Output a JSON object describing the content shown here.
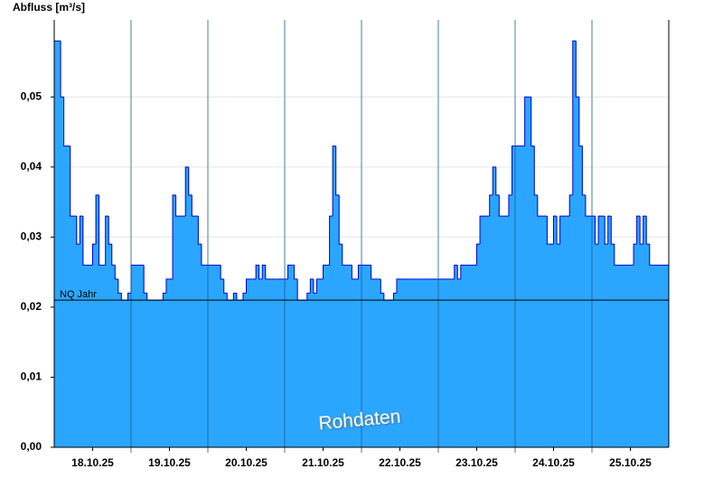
{
  "chart_data": {
    "type": "step-area",
    "y_label": "Abfluss [m³/s]",
    "color": "#2aa6ff",
    "line_color": "#0000cc",
    "grid": true,
    "ylim": [
      0,
      0.061
    ],
    "yticks": [
      {
        "value": 0,
        "label": "0,00"
      },
      {
        "value": 0.01,
        "label": "0,01"
      },
      {
        "value": 0.02,
        "label": "0,02"
      },
      {
        "value": 0.03,
        "label": "0,03"
      },
      {
        "value": 0.04,
        "label": "0,04"
      },
      {
        "value": 0.05,
        "label": "0,05"
      }
    ],
    "categories": [
      "18.10.25",
      "19.10.25",
      "20.10.25",
      "21.10.25",
      "22.10.25",
      "23.10.25",
      "24.10.25",
      "25.10.25"
    ],
    "values": [
      [
        0.058,
        0.058,
        0.05,
        0.043,
        0.043,
        0.033,
        0.033,
        0.029,
        0.033,
        0.026,
        0.026,
        0.026,
        0.029,
        0.036,
        0.026,
        0.026,
        0.033,
        0.029,
        0.026,
        0.024,
        0.022,
        0.021,
        0.021,
        0.022
      ],
      [
        0.026,
        0.026,
        0.026,
        0.026,
        0.022,
        0.021,
        0.021,
        0.021,
        0.021,
        0.021,
        0.022,
        0.024,
        0.024,
        0.036,
        0.033,
        0.033,
        0.033,
        0.04,
        0.036,
        0.033,
        0.033,
        0.029,
        0.026,
        0.026
      ],
      [
        0.026,
        0.026,
        0.026,
        0.026,
        0.024,
        0.022,
        0.021,
        0.021,
        0.022,
        0.021,
        0.021,
        0.022,
        0.024,
        0.024,
        0.024,
        0.026,
        0.024,
        0.026,
        0.024,
        0.024,
        0.024,
        0.024,
        0.024,
        0.024
      ],
      [
        0.024,
        0.026,
        0.026,
        0.024,
        0.021,
        0.021,
        0.021,
        0.022,
        0.024,
        0.022,
        0.024,
        0.024,
        0.026,
        0.026,
        0.033,
        0.043,
        0.036,
        0.029,
        0.026,
        0.026,
        0.026,
        0.024,
        0.024,
        0.026
      ],
      [
        0.026,
        0.026,
        0.026,
        0.024,
        0.024,
        0.024,
        0.022,
        0.021,
        0.021,
        0.021,
        0.022,
        0.024,
        0.024,
        0.024,
        0.024,
        0.024,
        0.024,
        0.024,
        0.024,
        0.024,
        0.024,
        0.024,
        0.024,
        0.024
      ],
      [
        0.024,
        0.024,
        0.024,
        0.024,
        0.024,
        0.026,
        0.024,
        0.026,
        0.026,
        0.026,
        0.026,
        0.026,
        0.029,
        0.033,
        0.033,
        0.033,
        0.036,
        0.04,
        0.036,
        0.033,
        0.033,
        0.033,
        0.036,
        0.043
      ],
      [
        0.043,
        0.043,
        0.043,
        0.05,
        0.05,
        0.043,
        0.036,
        0.033,
        0.033,
        0.033,
        0.029,
        0.029,
        0.033,
        0.029,
        0.033,
        0.033,
        0.033,
        0.036,
        0.058,
        0.05,
        0.043,
        0.036,
        0.033,
        0.033
      ],
      [
        0.033,
        0.029,
        0.033,
        0.033,
        0.029,
        0.033,
        0.029,
        0.026,
        0.026,
        0.026,
        0.026,
        0.026,
        0.026,
        0.029,
        0.033,
        0.029,
        0.033,
        0.029,
        0.026,
        0.026,
        0.026,
        0.026,
        0.026,
        0.026
      ]
    ],
    "reference_lines": [
      {
        "label": "NQ Jahr",
        "value": 0.021
      }
    ],
    "watermark": "Rohdaten"
  }
}
